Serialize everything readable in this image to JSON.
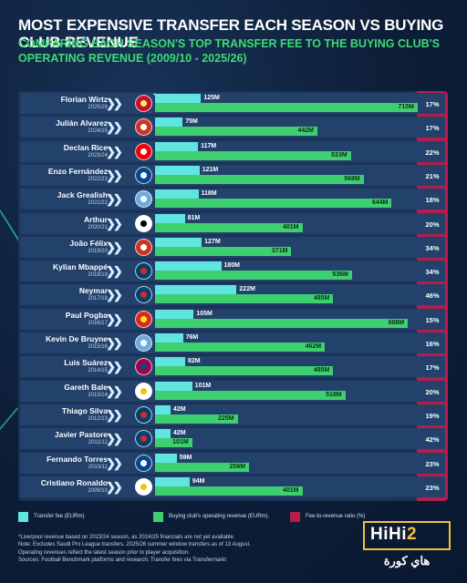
{
  "title": "MOST EXPENSIVE TRANSFER EACH SEASON VS BUYING CLUB REVENUE",
  "subtitle": "COMPARING EACH SEASON'S TOP TRANSFER FEE TO THE BUYING CLUB'S OPERATING REVENUE (2009/10 - 2025/26)",
  "colors": {
    "fee": "#5fe6e1",
    "revenue": "#3ecf71",
    "ratio": "#b81b4c",
    "subtitle": "#3ddb74"
  },
  "chart_data": {
    "type": "bar",
    "orientation": "horizontal",
    "value_suffix": "M",
    "series": [
      {
        "name": "Transfer fee (EUR m)",
        "color": "#5fe6e1"
      },
      {
        "name": "Buying club's operating revenue (EUR m)",
        "color": "#3ecf71"
      },
      {
        "name": "Fee-to-revenue ratio (%)",
        "color": "#b81b4c"
      }
    ],
    "rows": [
      {
        "player": "Florian Wirtz",
        "season": "2025/26",
        "club": "Liverpool",
        "crest_icon": "liverpool-crest-icon",
        "fee": 125,
        "revenue": 715,
        "ratio": "17%",
        "note_mark": "*"
      },
      {
        "player": "Julián Alvarez",
        "season": "2024/25",
        "club": "Atlético Madrid",
        "crest_icon": "atletico-madrid-crest-icon",
        "fee": 75,
        "revenue": 442,
        "ratio": "17%"
      },
      {
        "player": "Declan Rice",
        "season": "2023/24",
        "club": "Arsenal",
        "crest_icon": "arsenal-crest-icon",
        "fee": 117,
        "revenue": 533,
        "ratio": "22%"
      },
      {
        "player": "Enzo Fernández",
        "season": "2022/23",
        "club": "Chelsea",
        "crest_icon": "chelsea-crest-icon",
        "fee": 121,
        "revenue": 568,
        "ratio": "21%"
      },
      {
        "player": "Jack Grealish",
        "season": "2021/22",
        "club": "Manchester City",
        "crest_icon": "manchester-city-crest-icon",
        "fee": 118,
        "revenue": 644,
        "ratio": "18%"
      },
      {
        "player": "Arthur",
        "season": "2020/21",
        "club": "Juventus",
        "crest_icon": "juventus-crest-icon",
        "fee": 81,
        "revenue": 401,
        "ratio": "20%"
      },
      {
        "player": "João Félix",
        "season": "2019/20",
        "club": "Atlético Madrid",
        "crest_icon": "atletico-madrid-crest-icon",
        "fee": 127,
        "revenue": 371,
        "ratio": "34%"
      },
      {
        "player": "Kylian Mbappé",
        "season": "2018/19",
        "club": "Paris Saint-Germain",
        "crest_icon": "psg-crest-icon",
        "fee": 180,
        "revenue": 536,
        "ratio": "34%"
      },
      {
        "player": "Neymar",
        "season": "2017/18",
        "club": "Paris Saint-Germain",
        "crest_icon": "psg-crest-icon",
        "fee": 222,
        "revenue": 485,
        "ratio": "46%"
      },
      {
        "player": "Paul Pogba",
        "season": "2016/17",
        "club": "Manchester United",
        "crest_icon": "manchester-united-crest-icon",
        "fee": 105,
        "revenue": 688,
        "ratio": "15%"
      },
      {
        "player": "Kevin De Bruyne",
        "season": "2015/16",
        "club": "Manchester City",
        "crest_icon": "manchester-city-crest-icon",
        "fee": 76,
        "revenue": 462,
        "ratio": "16%"
      },
      {
        "player": "Luis Suárez",
        "season": "2014/15",
        "club": "Barcelona",
        "crest_icon": "barcelona-crest-icon",
        "fee": 82,
        "revenue": 485,
        "ratio": "17%"
      },
      {
        "player": "Gareth Bale",
        "season": "2013/14",
        "club": "Real Madrid",
        "crest_icon": "real-madrid-crest-icon",
        "fee": 101,
        "revenue": 518,
        "ratio": "20%"
      },
      {
        "player": "Thiago Silva",
        "season": "2012/13",
        "club": "Paris Saint-Germain",
        "crest_icon": "psg-crest-icon",
        "fee": 42,
        "revenue": 225,
        "ratio": "19%"
      },
      {
        "player": "Javier Pastore",
        "season": "2011/12",
        "club": "Paris Saint-Germain",
        "crest_icon": "psg-crest-icon",
        "fee": 42,
        "revenue": 101,
        "ratio": "42%"
      },
      {
        "player": "Fernando Torres",
        "season": "2010/11",
        "club": "Chelsea",
        "crest_icon": "chelsea-crest-icon",
        "fee": 59,
        "revenue": 256,
        "ratio": "23%"
      },
      {
        "player": "Cristiano Ronaldo",
        "season": "2009/10",
        "club": "Real Madrid",
        "crest_icon": "real-madrid-crest-icon",
        "fee": 94,
        "revenue": 401,
        "ratio": "23%"
      }
    ],
    "xlim": [
      0,
      720
    ],
    "grid": false,
    "legend_position": "bottom"
  },
  "legend": {
    "fee": "Transfer fee (EURm)",
    "revenue": "Buying club's operating revenue (EURm).",
    "ratio": "Fee-to-revenue ratio (%)"
  },
  "notes": [
    "*Liverpool revenue based on 2023/24 season, as 2024/25 financials are not yet available.",
    "Note: Excludes Saudi Pro League transfers. 2025/26 summer window transfers as of 13 August.",
    "Operating revenues reflect the latest season prior to player acquisition.",
    "Sources: Football Benchmark platforms and research; Transfer fees via Transfermarkt"
  ],
  "logo": {
    "latin_a": "HiHi",
    "latin_b": "2",
    "arabic": "هاي كورة"
  }
}
